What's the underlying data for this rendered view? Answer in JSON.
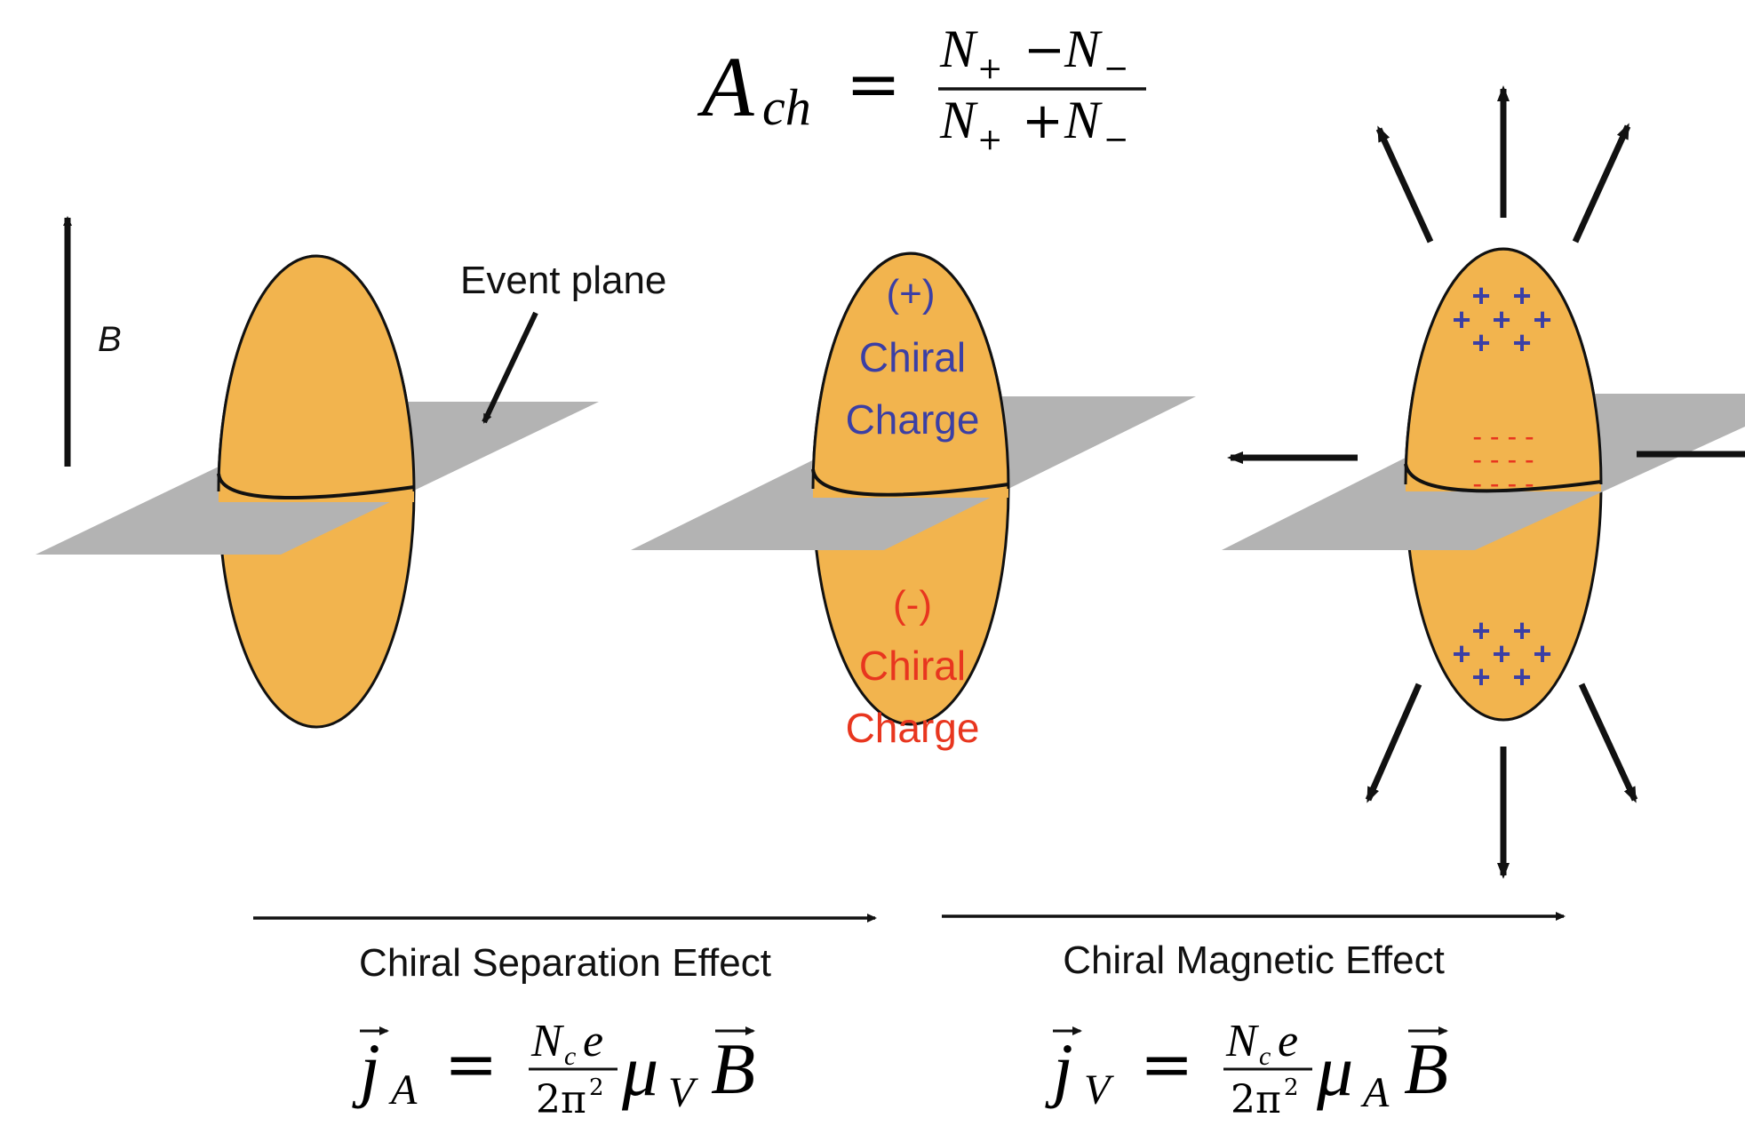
{
  "formula_top": {
    "lhs": "A",
    "lhs_sub": "ch",
    "equals": "=",
    "num_a": "N",
    "num_a_sub": "+",
    "num_op": "−",
    "num_b": "N",
    "num_b_sub": "−",
    "den_a": "N",
    "den_a_sub": "+",
    "den_op": "+",
    "den_b": "N",
    "den_b_sub": "−"
  },
  "field_label": "B",
  "event_plane_label": "Event plane",
  "middle": {
    "plus_sign": "(+)",
    "plus_line1": "Chiral",
    "plus_line2": "Charge",
    "minus_sign": "(-)",
    "minus_line1": "Chiral",
    "minus_line2": "Charge"
  },
  "right": {
    "plus_symbol": "+",
    "minus_symbol": "- - - -"
  },
  "cse_label": "Chiral Separation Effect",
  "cme_label": "Chiral Magnetic Effect",
  "cse_formula": {
    "j": "j",
    "j_sub": "A",
    "equals": "=",
    "num": "N",
    "num_sub": "c",
    "num_e": "e",
    "den": "2π",
    "den_sup": "2",
    "mu": "μ",
    "mu_sub": "V",
    "b": "B"
  },
  "cme_formula": {
    "j": "j",
    "j_sub": "V",
    "equals": "=",
    "num": "N",
    "num_sub": "c",
    "num_e": "e",
    "den": "2π",
    "den_sup": "2",
    "mu": "μ",
    "mu_sub": "A",
    "b": "B"
  },
  "colors": {
    "ellipse_fill": "#f2b44e",
    "plane_fill": "#b3b3b3",
    "positive": "#3b3fa5",
    "negative": "#e8361f",
    "line": "#111111"
  }
}
